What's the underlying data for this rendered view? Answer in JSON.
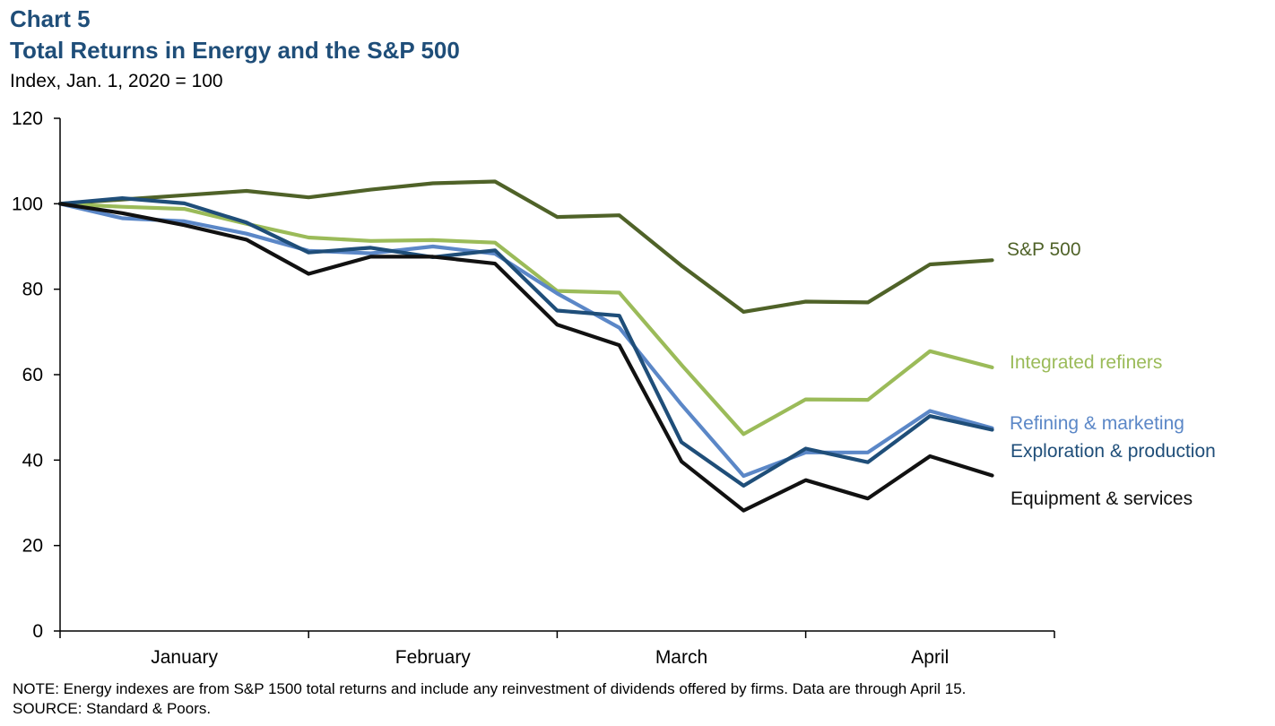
{
  "header": {
    "chart_number": "Chart 5",
    "title": "Total Returns in Energy and the S&P 500",
    "subtitle": "Index, Jan. 1, 2020 = 100"
  },
  "footer": {
    "note": "NOTE: Energy indexes are from S&P 1500 total returns and include any reinvestment of dividends offered by firms. Data are through April 15.",
    "source": "SOURCE: Standard & Poors."
  },
  "chart_data": {
    "type": "line",
    "title": "Total Returns in Energy and the S&P 500",
    "ylabel": "Index, Jan. 1, 2020 = 100",
    "xlabel": "",
    "ylim": [
      0,
      120
    ],
    "yticks": [
      0,
      20,
      40,
      60,
      80,
      100,
      120
    ],
    "month_labels": [
      "January",
      "February",
      "March",
      "April"
    ],
    "x": [
      0,
      1,
      2,
      3,
      4,
      5,
      6,
      7,
      8,
      9,
      10,
      11,
      12,
      13,
      14,
      15
    ],
    "legend_placement": "inline labels at right end of lines",
    "grid": false,
    "series": [
      {
        "name": "S&P 500",
        "color": "#4f6228",
        "values": [
          100,
          101,
          102,
          103,
          101.5,
          103.3,
          104.8,
          105.2,
          96.9,
          97.3,
          85.5,
          74.7,
          77.1,
          76.9,
          85.8,
          86.8
        ]
      },
      {
        "name": "Integrated refiners",
        "color": "#9bbb59",
        "values": [
          100,
          99.3,
          98.8,
          95.3,
          92.1,
          91.3,
          91.5,
          90.9,
          79.6,
          79.2,
          62.3,
          46.1,
          54.2,
          54.1,
          65.5,
          61.7
        ]
      },
      {
        "name": "Refining & marketing",
        "color": "#5b87c7",
        "values": [
          100,
          96.6,
          95.9,
          93.0,
          89.0,
          88.4,
          90.0,
          88.3,
          79.0,
          71.0,
          53.0,
          36.3,
          41.8,
          41.8,
          51.5,
          47.5
        ]
      },
      {
        "name": "Exploration & production",
        "color": "#1f4e79",
        "values": [
          100,
          101.3,
          100.1,
          95.6,
          88.6,
          89.7,
          87.5,
          89.1,
          75.0,
          73.8,
          44.2,
          34.0,
          42.7,
          39.5,
          50.3,
          47.1
        ]
      },
      {
        "name": "Equipment & services",
        "color": "#111111",
        "values": [
          100,
          97.8,
          95.0,
          91.6,
          83.6,
          87.6,
          87.6,
          86.0,
          71.7,
          66.9,
          39.7,
          28.2,
          35.3,
          31.0,
          40.9,
          36.4
        ]
      }
    ]
  }
}
